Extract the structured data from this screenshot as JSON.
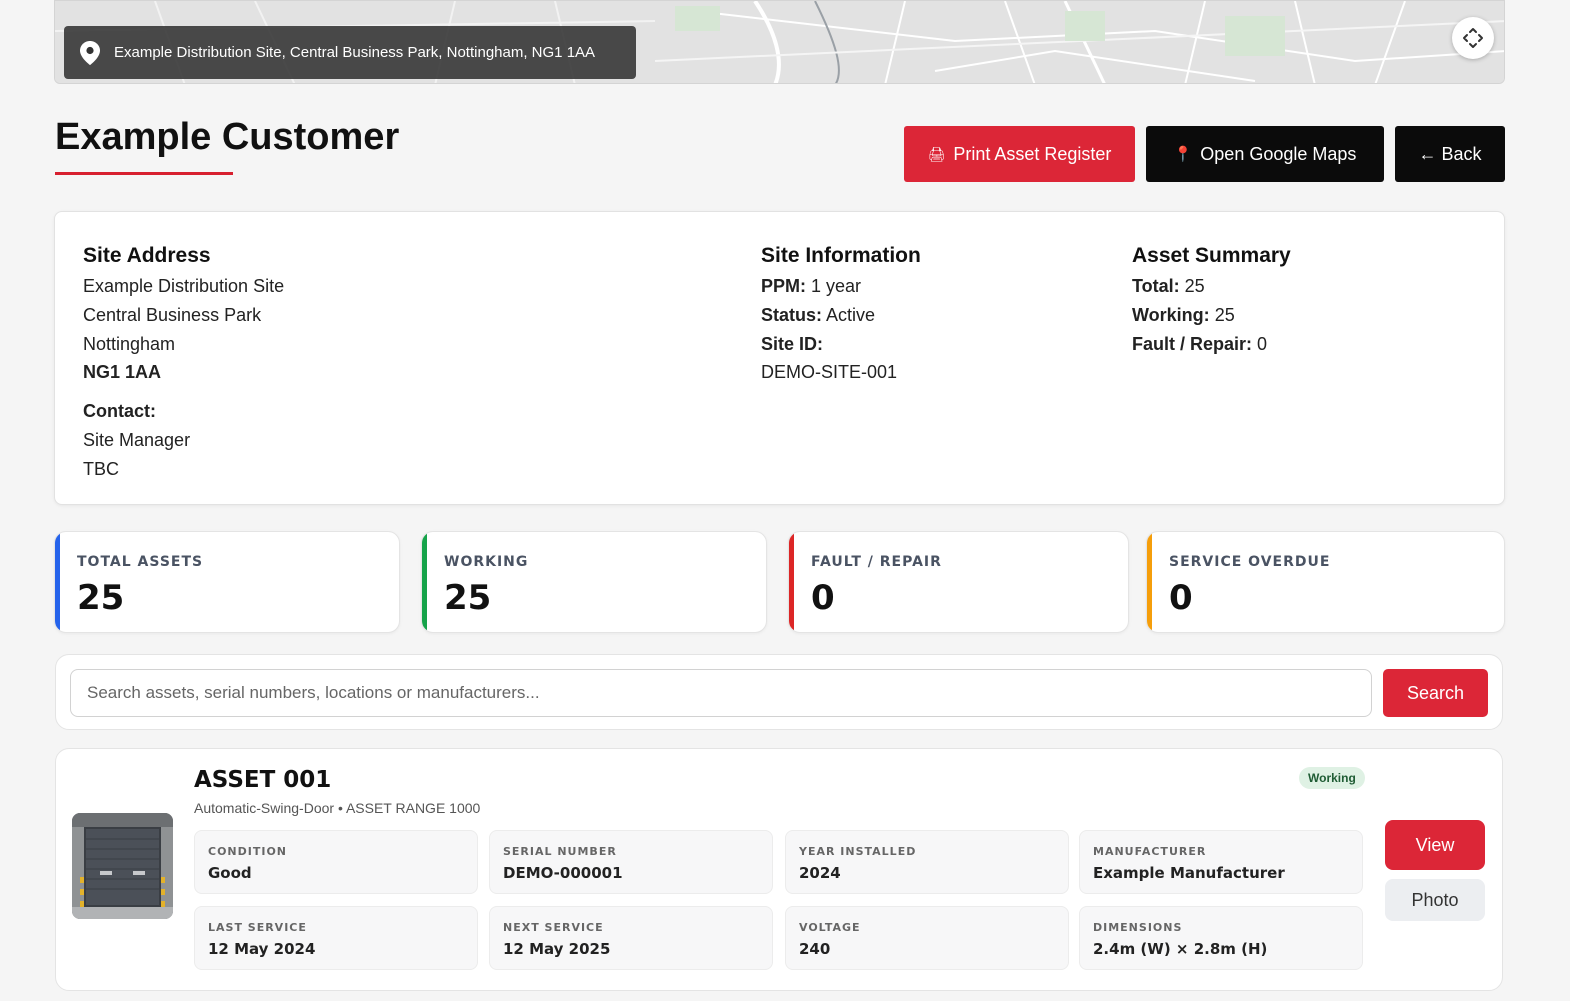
{
  "map": {
    "address_pill": "Example Distribution Site, Central Business Park, Nottingham, NG1 1AA",
    "icons": {
      "pin": "map-pin-icon",
      "expand": "fullscreen-expand-icon"
    }
  },
  "header": {
    "title": "Example Customer",
    "buttons": {
      "print": {
        "icon": "🖨",
        "label": "Print Asset Register"
      },
      "maps": {
        "icon": "📍",
        "label": "Open Google Maps"
      },
      "back": "← Back"
    }
  },
  "site": {
    "address": {
      "heading": "Site Address",
      "line1": "Example Distribution Site",
      "line2": "Central Business Park",
      "line3": "Nottingham",
      "postcode": "NG1 1AA",
      "contact_heading": "Contact:",
      "contact_name": "Site Manager",
      "contact_phone": "TBC"
    },
    "info": {
      "heading": "Site Information",
      "ppm_label": "PPM:",
      "ppm_value": "1 year",
      "status_label": "Status:",
      "status_value": "Active",
      "site_id_label": "Site ID:",
      "site_id_value": "DEMO-SITE-001"
    },
    "summary": {
      "heading": "Asset Summary",
      "total_label": "Total:",
      "total_value": "25",
      "working_label": "Working:",
      "working_value": "25",
      "fault_label": "Fault / Repair:",
      "fault_value": "0"
    }
  },
  "stats": [
    {
      "label": "TOTAL ASSETS",
      "value": "25",
      "accent": "#2563eb"
    },
    {
      "label": "WORKING",
      "value": "25",
      "accent": "#16a34a"
    },
    {
      "label": "FAULT / REPAIR",
      "value": "0",
      "accent": "#dc2626"
    },
    {
      "label": "SERVICE OVERDUE",
      "value": "0",
      "accent": "#f59e0b"
    }
  ],
  "search": {
    "placeholder": "Search assets, serial numbers, locations or manufacturers...",
    "value": "",
    "button": "Search"
  },
  "asset": {
    "title": "ASSET 001",
    "subtitle": "Automatic-Swing-Door • ASSET RANGE 1000",
    "status": "Working",
    "fields": {
      "condition": {
        "label": "CONDITION",
        "value": "Good"
      },
      "serial": {
        "label": "SERIAL NUMBER",
        "value": "DEMO-000001"
      },
      "year": {
        "label": "YEAR INSTALLED",
        "value": "2024"
      },
      "manufacturer": {
        "label": "MANUFACTURER",
        "value": "Example Manufacturer"
      },
      "last_service": {
        "label": "LAST SERVICE",
        "value": "12 May 2024"
      },
      "next_service": {
        "label": "NEXT SERVICE",
        "value": "12 May 2025"
      },
      "voltage": {
        "label": "VOLTAGE",
        "value": "240"
      },
      "dimensions": {
        "label": "DIMENSIONS",
        "value": "2.4m (W) × 2.8m (H)"
      }
    },
    "buttons": {
      "view": "View",
      "photo": "Photo"
    },
    "thumb_icon": "roller-door-photo"
  },
  "colors": {
    "brand_red": "#dc2637",
    "dark": "#0b0b0b",
    "working_badge_bg": "#dff1e4"
  }
}
